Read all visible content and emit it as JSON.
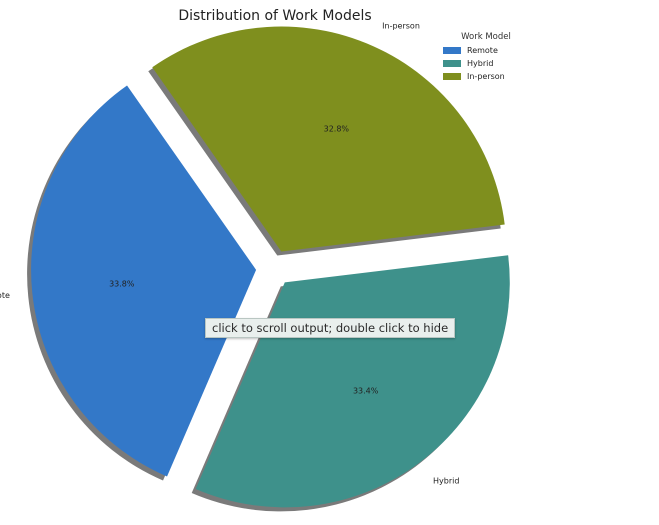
{
  "chart_data": {
    "type": "pie",
    "title": "Distribution of Work Models",
    "legend": {
      "title": "Work Model",
      "placement": "top-right"
    },
    "slices": [
      {
        "label": "Remote",
        "value": 33.8,
        "pct_label": "33.8%",
        "color": "#3378c8"
      },
      {
        "label": "Hybrid",
        "value": 33.4,
        "pct_label": "33.4%",
        "color": "#3e918b"
      },
      {
        "label": "In-person",
        "value": 32.8,
        "pct_label": "32.8%",
        "color": "#7f8f1e"
      }
    ],
    "exploded": true,
    "shadow": true
  },
  "tooltip": {
    "text": "click to scroll output; double click to hide"
  }
}
